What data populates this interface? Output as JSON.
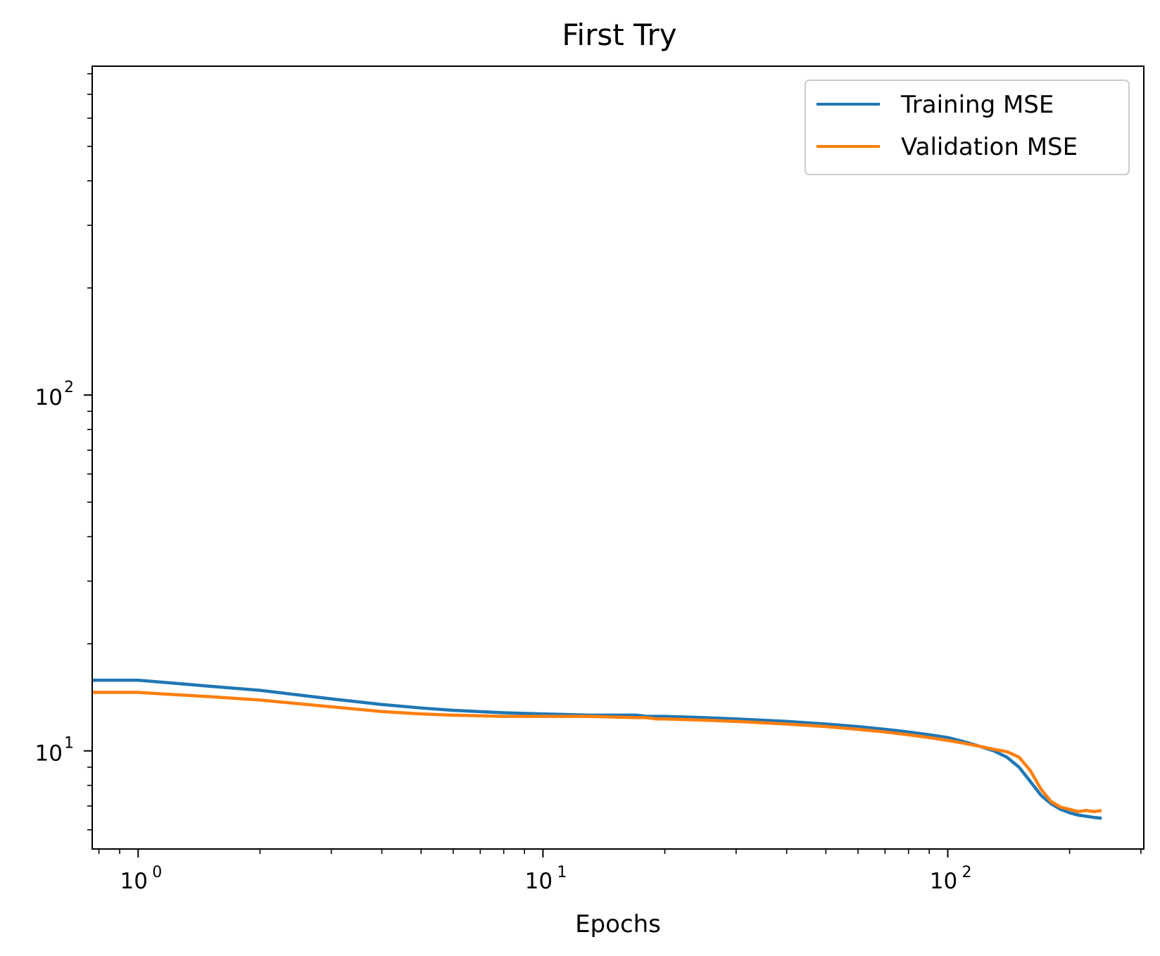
{
  "chart_data": {
    "type": "line",
    "title": "First Try",
    "xlabel": "Epochs",
    "ylabel": "",
    "xscale": "log",
    "yscale": "log",
    "xlim": [
      0.77,
      305
    ],
    "ylim": [
      5.3,
      840
    ],
    "grid": false,
    "legend_position": "top-right",
    "x_tick_labels": [
      {
        "value": 1,
        "base": "10",
        "exponent": "0"
      },
      {
        "value": 10,
        "base": "10",
        "exponent": "1"
      },
      {
        "value": 100,
        "base": "10",
        "exponent": "2"
      }
    ],
    "y_tick_labels": [
      {
        "value": 10,
        "base": "10",
        "exponent": "1"
      },
      {
        "value": 100,
        "base": "10",
        "exponent": "2"
      }
    ],
    "series": [
      {
        "name": "Training MSE",
        "color": "#1f77b4",
        "x": [
          0.77,
          1,
          1.5,
          2,
          3,
          4,
          5,
          6,
          8,
          10,
          13,
          17,
          18,
          20,
          25,
          30,
          40,
          50,
          60,
          70,
          80,
          90,
          100,
          110,
          120,
          130,
          140,
          150,
          160,
          170,
          180,
          190,
          200,
          210,
          220,
          230,
          240
        ],
        "y": [
          15.8,
          15.8,
          15.2,
          14.8,
          14.0,
          13.5,
          13.2,
          13.0,
          12.8,
          12.7,
          12.6,
          12.6,
          12.5,
          12.5,
          12.4,
          12.3,
          12.1,
          11.9,
          11.7,
          11.5,
          11.3,
          11.1,
          10.9,
          10.6,
          10.3,
          10.0,
          9.6,
          9.0,
          8.2,
          7.5,
          7.1,
          6.85,
          6.7,
          6.6,
          6.55,
          6.5,
          6.47
        ]
      },
      {
        "name": "Validation MSE",
        "color": "#ff7f0e",
        "x": [
          0.77,
          1,
          1.5,
          2,
          3,
          4,
          5,
          6,
          8,
          10,
          13,
          17,
          18,
          19,
          20,
          25,
          30,
          40,
          50,
          60,
          70,
          80,
          90,
          100,
          110,
          120,
          130,
          140,
          150,
          160,
          170,
          180,
          190,
          200,
          210,
          220,
          230,
          240
        ],
        "y": [
          14.6,
          14.6,
          14.2,
          13.9,
          13.3,
          12.9,
          12.7,
          12.6,
          12.5,
          12.5,
          12.5,
          12.4,
          12.4,
          12.3,
          12.3,
          12.2,
          12.1,
          11.9,
          11.7,
          11.5,
          11.3,
          11.1,
          10.9,
          10.7,
          10.5,
          10.3,
          10.1,
          9.95,
          9.6,
          8.8,
          7.8,
          7.2,
          6.95,
          6.85,
          6.75,
          6.8,
          6.75,
          6.8
        ]
      }
    ]
  }
}
